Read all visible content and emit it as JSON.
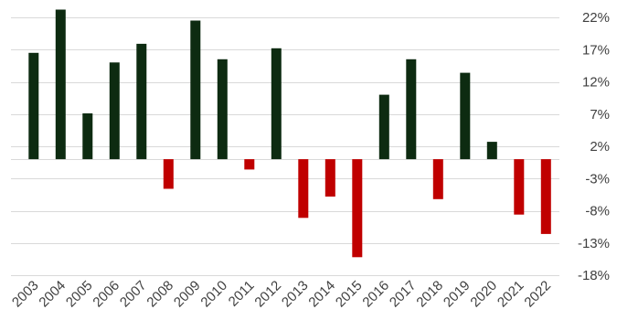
{
  "chart_data": {
    "type": "bar",
    "title": "",
    "xlabel": "",
    "ylabel": "",
    "categories": [
      "2003",
      "2004",
      "2005",
      "2006",
      "2007",
      "2008",
      "2009",
      "2010",
      "2011",
      "2012",
      "2013",
      "2014",
      "2015",
      "2016",
      "2017",
      "2018",
      "2019",
      "2020",
      "2021",
      "2022"
    ],
    "values": [
      16.5,
      23.2,
      7.1,
      15.0,
      17.9,
      -4.6,
      21.5,
      15.5,
      -1.6,
      17.2,
      -9.1,
      -5.8,
      -15.2,
      10.0,
      15.5,
      -6.2,
      13.4,
      2.7,
      -8.6,
      -11.6
    ],
    "ylim": [
      -18,
      22
    ],
    "yticks": [
      22,
      17,
      12,
      7,
      2,
      -3,
      -8,
      -13,
      -18
    ],
    "ytick_labels": [
      "22%",
      "17%",
      "12%",
      "7%",
      "2%",
      "-3%",
      "-8%",
      "-13%",
      "-18%"
    ],
    "y_axis_position": "right",
    "grid": true,
    "colors": {
      "positive": "#0d2b11",
      "negative": "#c00000"
    }
  }
}
